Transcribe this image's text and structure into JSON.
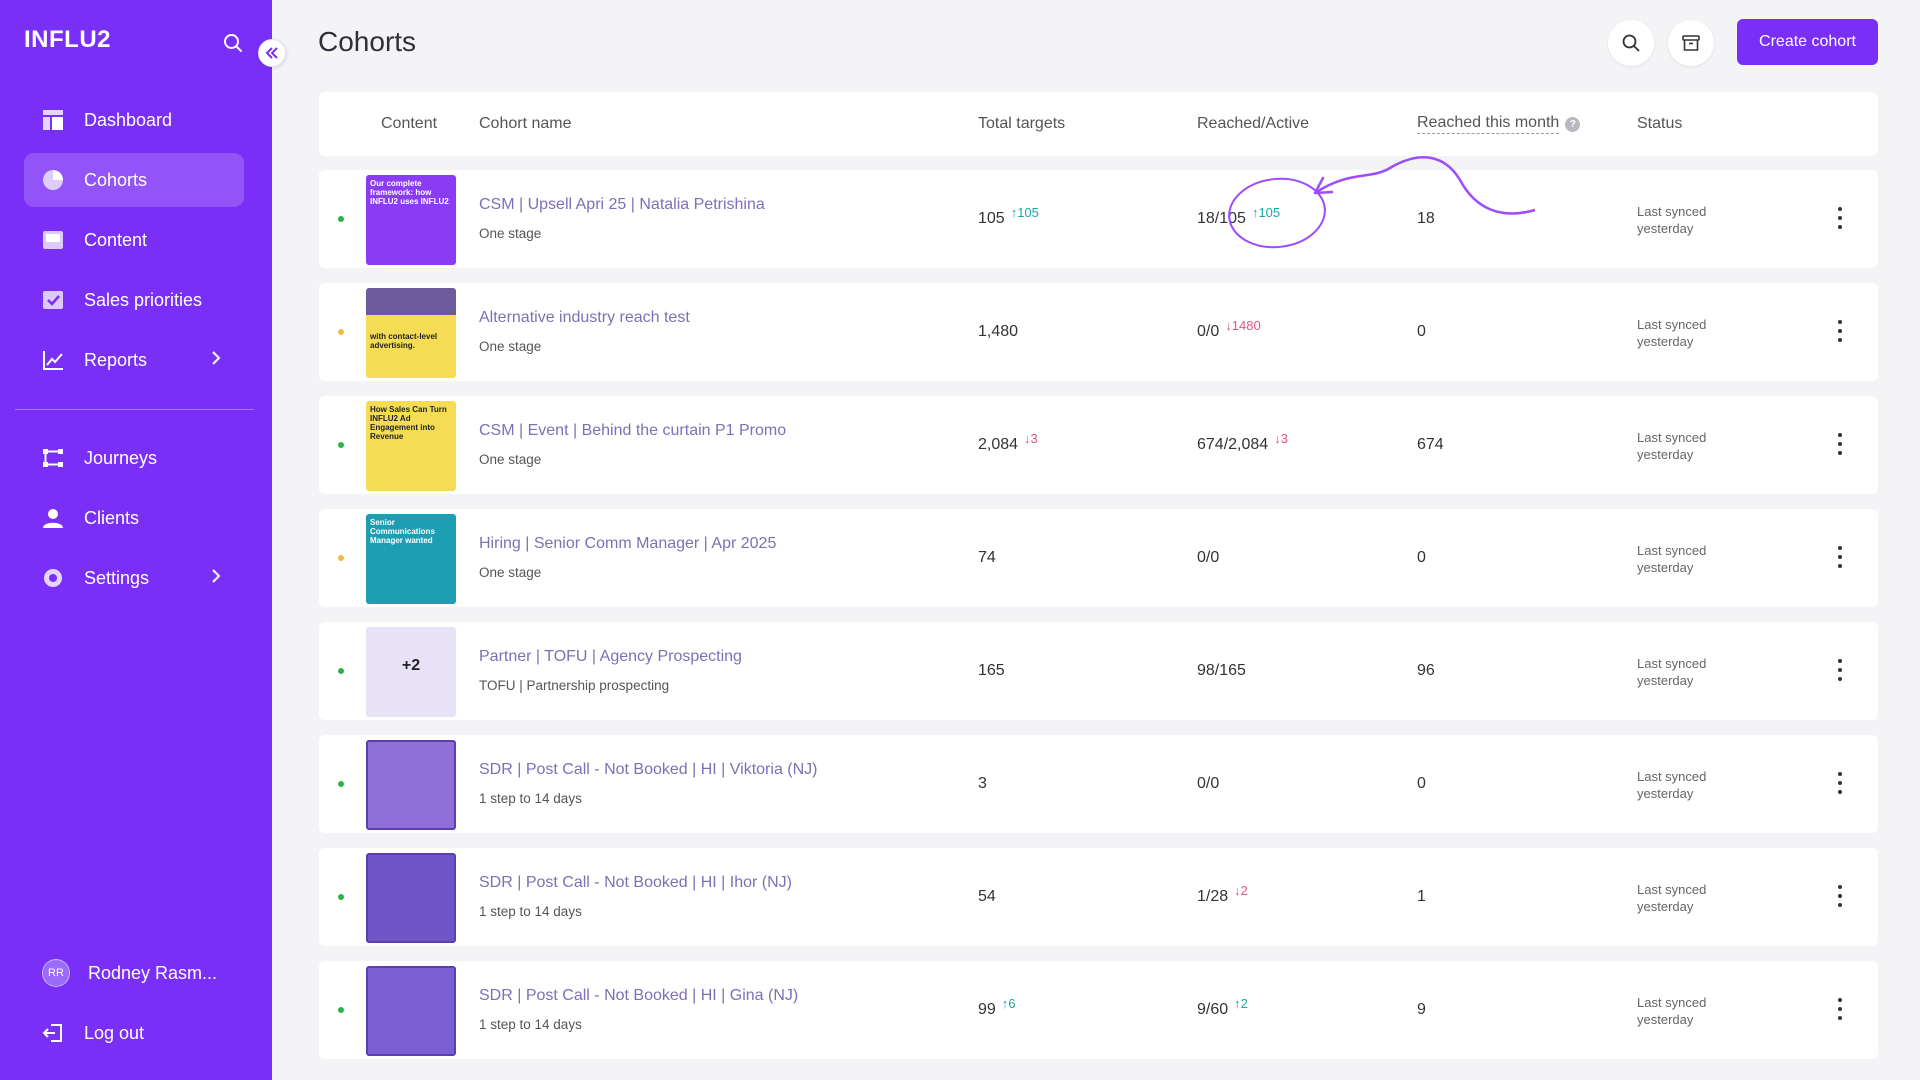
{
  "brand": "INFLU2",
  "sidebar": {
    "items": [
      {
        "label": "Dashboard"
      },
      {
        "label": "Cohorts"
      },
      {
        "label": "Content"
      },
      {
        "label": "Sales priorities"
      },
      {
        "label": "Reports"
      },
      {
        "label": "Journeys"
      },
      {
        "label": "Clients"
      },
      {
        "label": "Settings"
      }
    ],
    "active": "Cohorts",
    "user": {
      "initials": "RR",
      "name": "Rodney Rasm..."
    },
    "logout": "Log out"
  },
  "header": {
    "title": "Cohorts",
    "create_label": "Create cohort"
  },
  "table": {
    "columns": [
      "Content",
      "Cohort name",
      "Total targets",
      "Reached/Active",
      "Reached this month",
      "Status"
    ],
    "help_glyph": "?",
    "rows": [
      {
        "status_color": "#2bb34b",
        "name": "CSM | Upsell Apri 25 | Natalia Petrishina",
        "stage": "One stage",
        "total": "105",
        "total_delta": "↑105",
        "reached_active": "18/105",
        "ra_delta": "↑105",
        "month": "18",
        "sync1": "Last synced",
        "sync2": "yesterday",
        "thumb_text": "Our complete framework: how INFLU2 uses INFLU2"
      },
      {
        "status_color": "#f5b942",
        "name": "Alternative industry reach test",
        "stage": "One stage",
        "total": "1,480",
        "total_delta": "",
        "reached_active": "0/0",
        "ra_delta": "↓1480",
        "month": "0",
        "sync1": "Last synced",
        "sync2": "yesterday",
        "thumb_text": "with contact-level advertising."
      },
      {
        "status_color": "#2bb34b",
        "name": "CSM | Event | Behind the curtain P1 Promo",
        "stage": "One stage",
        "total": "2,084",
        "total_delta": "↓3",
        "reached_active": "674/2,084",
        "ra_delta": "↓3",
        "month": "674",
        "sync1": "Last synced",
        "sync2": "yesterday",
        "thumb_text": "How Sales Can Turn INFLU2 Ad Engagement into Revenue"
      },
      {
        "status_color": "#f5b942",
        "name": "Hiring | Senior Comm Manager | Apr 2025",
        "stage": "One stage",
        "total": "74",
        "total_delta": "",
        "reached_active": "0/0",
        "ra_delta": "",
        "month": "0",
        "sync1": "Last synced",
        "sync2": "yesterday",
        "thumb_text": "Senior Communications Manager wanted"
      },
      {
        "status_color": "#2bb34b",
        "name": "Partner | TOFU | Agency Prospecting",
        "stage": "TOFU | Partnership prospecting",
        "total": "165",
        "total_delta": "",
        "reached_active": "98/165",
        "ra_delta": "",
        "month": "96",
        "sync1": "Last synced",
        "sync2": "yesterday",
        "thumb_text": "+2"
      },
      {
        "status_color": "#2bb34b",
        "name": "SDR | Post Call - Not Booked | HI | Viktoria (NJ)",
        "stage": "1 step to 14 days",
        "total": "3",
        "total_delta": "",
        "reached_active": "0/0",
        "ra_delta": "",
        "month": "0",
        "sync1": "Last synced",
        "sync2": "yesterday",
        "thumb_text": ""
      },
      {
        "status_color": "#2bb34b",
        "name": "SDR | Post Call - Not Booked | HI | Ihor (NJ)",
        "stage": "1 step to 14 days",
        "total": "54",
        "total_delta": "",
        "reached_active": "1/28",
        "ra_delta": "↓2",
        "month": "1",
        "sync1": "Last synced",
        "sync2": "yesterday",
        "thumb_text": ""
      },
      {
        "status_color": "#2bb34b",
        "name": "SDR | Post Call - Not Booked | HI | Gina (NJ)",
        "stage": "1 step to 14 days",
        "total": "99",
        "total_delta": "↑6",
        "reached_active": "9/60",
        "ra_delta": "↑2",
        "month": "9",
        "sync1": "Last synced",
        "sync2": "yesterday",
        "thumb_text": ""
      }
    ]
  },
  "colors": {
    "brand": "#7a2ff7",
    "link": "#7f6fb5",
    "up": "#1ba9a0",
    "down": "#e0567f"
  }
}
